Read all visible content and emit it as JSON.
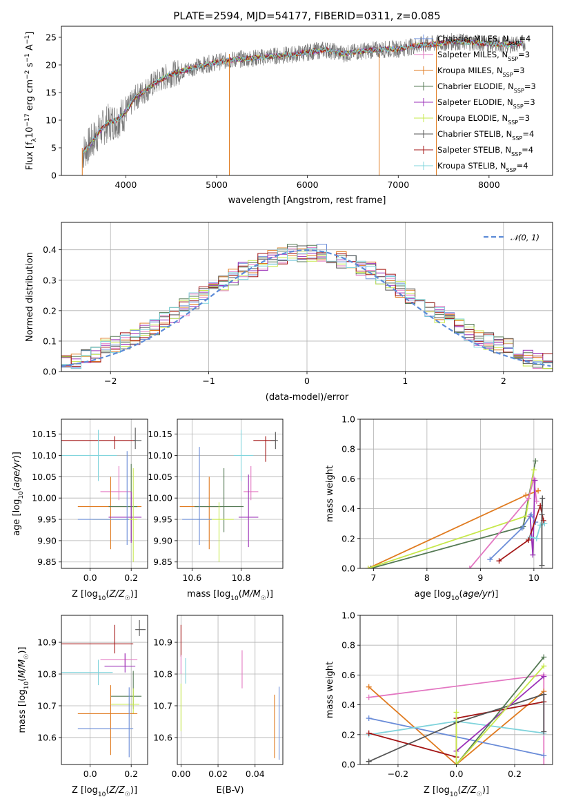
{
  "chart_data": [
    {
      "type": "line",
      "title": "PLATE=2594, MJD=54177, FIBERID=0311, z=0.085",
      "xlabel": "wavelength [Angstrom, rest frame]",
      "ylabel": "Flux [f_λ10^-17 erg cm^-2 s^-1 A^-1]",
      "xlim": [
        3290,
        8700
      ],
      "ylim": [
        0,
        27
      ],
      "xticks": [
        "4000",
        "5000",
        "6000",
        "7000",
        "8000"
      ],
      "yticks": [
        "0",
        "5",
        "10",
        "15",
        "20",
        "25"
      ],
      "legend_position": "top-right",
      "spectrum_envelope": {
        "x": [
          3520,
          3600,
          3700,
          3800,
          3900,
          4000,
          4100,
          4200,
          4300,
          4400,
          4500,
          4600,
          4800,
          5000,
          5200,
          5400,
          5600,
          5800,
          6000,
          6200,
          6400,
          6600,
          6800,
          7000,
          7200,
          7400,
          7600,
          7800,
          8000,
          8200,
          8400
        ],
        "y": [
          4.0,
          5.5,
          7.8,
          9.5,
          10.0,
          11.5,
          14.0,
          15.2,
          16.5,
          17.5,
          18.3,
          18.8,
          19.8,
          20.5,
          21.0,
          21.2,
          21.6,
          21.8,
          22.3,
          22.8,
          22.0,
          22.5,
          22.8,
          22.9,
          23.5,
          23.8,
          24.2,
          24.1,
          23.8,
          23.6,
          24.0
        ]
      },
      "series": [
        {
          "name": "Chabrier MILES, N_SSP=4",
          "color": "#6a8cd8"
        },
        {
          "name": "Salpeter MILES, N_SSP=3",
          "color": "#e377c2"
        },
        {
          "name": "Kroupa MILES, N_SSP=3",
          "color": "#e07b20"
        },
        {
          "name": "Chabrier ELODIE, N_SSP=3",
          "color": "#557a55"
        },
        {
          "name": "Salpeter ELODIE, N_SSP=3",
          "color": "#9b30b8"
        },
        {
          "name": "Kroupa ELODIE, N_SSP=3",
          "color": "#c6e84a"
        },
        {
          "name": "Chabrier STELIB, N_SSP=4",
          "color": "#555555"
        },
        {
          "name": "Salpeter STELIB, N_SSP=4",
          "color": "#a31515"
        },
        {
          "name": "Kroupa STELIB, N_SSP=4",
          "color": "#80d4dc"
        }
      ]
    },
    {
      "type": "line",
      "xlabel": "(data-model)/error",
      "ylabel": "Normed distribution",
      "xlim": [
        -2.5,
        2.5
      ],
      "ylim": [
        0,
        0.49
      ],
      "xticks": [
        "−2",
        "−1",
        "0",
        "1",
        "2"
      ],
      "yticks": [
        "0.0",
        "0.1",
        "0.2",
        "0.3",
        "0.4"
      ],
      "legend_position": "top-right",
      "reference_curve": {
        "name": "𝒩(0, 1)",
        "color": "#5b8ad6"
      },
      "bin_centers": [
        -2.45,
        -2.35,
        -2.25,
        -2.15,
        -2.05,
        -1.95,
        -1.85,
        -1.75,
        -1.65,
        -1.55,
        -1.45,
        -1.35,
        -1.25,
        -1.15,
        -1.05,
        -0.95,
        -0.85,
        -0.75,
        -0.65,
        -0.55,
        -0.45,
        -0.35,
        -0.25,
        -0.15,
        -0.05,
        0.05,
        0.15,
        0.25,
        0.35,
        0.45,
        0.55,
        0.65,
        0.75,
        0.85,
        0.95,
        1.05,
        1.15,
        1.25,
        1.35,
        1.45,
        1.55,
        1.65,
        1.75,
        1.85,
        1.95,
        2.05,
        2.15,
        2.25,
        2.35,
        2.45
      ],
      "histogram_base": [
        0.03,
        0.035,
        0.045,
        0.06,
        0.08,
        0.09,
        0.1,
        0.11,
        0.13,
        0.15,
        0.17,
        0.19,
        0.21,
        0.23,
        0.25,
        0.27,
        0.29,
        0.31,
        0.33,
        0.34,
        0.36,
        0.37,
        0.38,
        0.39,
        0.39,
        0.39,
        0.39,
        0.38,
        0.37,
        0.36,
        0.34,
        0.33,
        0.31,
        0.29,
        0.27,
        0.25,
        0.23,
        0.21,
        0.19,
        0.17,
        0.15,
        0.13,
        0.11,
        0.1,
        0.09,
        0.08,
        0.06,
        0.045,
        0.035,
        0.03
      ]
    },
    {
      "type": "scatter",
      "xlabel": "Z [log10(Z/Z☉)]",
      "ylabel": "age  [log10(age/yr)]",
      "xlim": [
        -0.14,
        0.28
      ],
      "ylim": [
        9.835,
        10.185
      ],
      "xticks": [
        "0.0",
        "0.2"
      ],
      "yticks": [
        "9.85",
        "9.90",
        "9.95",
        "10.00",
        "10.05",
        "10.10",
        "10.15"
      ],
      "points": [
        {
          "x": 0.12,
          "y": 10.135,
          "xerr": [
            0.26,
            0.1
          ],
          "yerr": [
            0.02,
            0.01
          ],
          "color": "#a31515"
        },
        {
          "x": 0.22,
          "y": 10.135,
          "xerr": [
            0.01,
            0.03
          ],
          "yerr": [
            0.02,
            0.03
          ],
          "color": "#555555"
        },
        {
          "x": 0.04,
          "y": 10.1,
          "xerr": [
            0.2,
            0.09
          ],
          "yerr": [
            0.06,
            0.06
          ],
          "color": "#80d4dc"
        },
        {
          "x": 0.14,
          "y": 10.015,
          "xerr": [
            0.09,
            0.06
          ],
          "yerr": [
            0.02,
            0.06
          ],
          "color": "#e377c2"
        },
        {
          "x": 0.1,
          "y": 9.98,
          "xerr": [
            0.16,
            0.15
          ],
          "yerr": [
            0.1,
            0.07
          ],
          "color": "#e07b20"
        },
        {
          "x": 0.2,
          "y": 9.98,
          "xerr": [
            0.11,
            0.03
          ],
          "yerr": [
            0.08,
            0.1
          ],
          "color": "#557a55"
        },
        {
          "x": 0.2,
          "y": 9.955,
          "xerr": [
            0.11,
            0.05
          ],
          "yerr": [
            0.06,
            0.06
          ],
          "color": "#9b30b8"
        },
        {
          "x": 0.21,
          "y": 9.95,
          "xerr": [
            0.2,
            0.02
          ],
          "yerr": [
            0.1,
            0.12
          ],
          "color": "#c6e84a"
        },
        {
          "x": 0.18,
          "y": 9.95,
          "xerr": [
            0.24,
            0.01
          ],
          "yerr": [
            0.06,
            0.16
          ],
          "color": "#6a8cd8"
        }
      ]
    },
    {
      "type": "scatter",
      "xlabel": "mass [log10(M/M☉)]",
      "xlim": [
        10.54,
        10.97
      ],
      "ylim": [
        9.835,
        10.185
      ],
      "xticks": [
        "10.6",
        "10.8"
      ],
      "yticks": [
        "9.85",
        "9.90",
        "9.95",
        "10.00",
        "10.05",
        "10.10",
        "10.15"
      ],
      "points": [
        {
          "x": 10.9,
          "y": 10.135,
          "xerr": [
            0.05,
            0.04
          ],
          "yerr": [
            0.05,
            0.01
          ],
          "color": "#a31515"
        },
        {
          "x": 10.94,
          "y": 10.135,
          "xerr": [
            0.02,
            0.01
          ],
          "yerr": [
            0.02,
            0.02
          ],
          "color": "#555555"
        },
        {
          "x": 10.8,
          "y": 10.1,
          "xerr": [
            0.03,
            0.05
          ],
          "yerr": [
            0.06,
            0.06
          ],
          "color": "#80d4dc"
        },
        {
          "x": 10.84,
          "y": 10.015,
          "xerr": [
            0.03,
            0.03
          ],
          "yerr": [
            0.02,
            0.06
          ],
          "color": "#e377c2"
        },
        {
          "x": 10.67,
          "y": 9.98,
          "xerr": [
            0.12,
            0.05
          ],
          "yerr": [
            0.1,
            0.07
          ],
          "color": "#e07b20"
        },
        {
          "x": 10.73,
          "y": 9.98,
          "xerr": [
            0.12,
            0.08
          ],
          "yerr": [
            0.06,
            0.09
          ],
          "color": "#557a55"
        },
        {
          "x": 10.83,
          "y": 9.955,
          "xerr": [
            0.04,
            0.04
          ],
          "yerr": [
            0.07,
            0.1
          ],
          "color": "#9b30b8"
        },
        {
          "x": 10.71,
          "y": 9.95,
          "xerr": [
            0.09,
            0.06
          ],
          "yerr": [
            0.1,
            0.04
          ],
          "color": "#c6e84a"
        },
        {
          "x": 10.63,
          "y": 9.95,
          "xerr": [
            0.07,
            0.05
          ],
          "yerr": [
            0.06,
            0.17
          ],
          "color": "#6a8cd8"
        }
      ]
    },
    {
      "type": "line",
      "xlabel": "age  [log10(age/yr)]",
      "ylabel": "mass weight",
      "xlim": [
        6.75,
        10.35
      ],
      "ylim": [
        0,
        1
      ],
      "xticks": [
        "7",
        "8",
        "9",
        "10"
      ],
      "yticks": [
        "0.0",
        "0.2",
        "0.4",
        "0.6",
        "0.8",
        "1.0"
      ],
      "series": [
        {
          "color": "#e07b20",
          "x": [
            6.9,
            9.85,
            10.08
          ],
          "y": [
            0.0,
            0.49,
            0.52
          ]
        },
        {
          "color": "#557a55",
          "x": [
            6.95,
            9.8,
            10.03
          ],
          "y": [
            0.0,
            0.28,
            0.72
          ]
        },
        {
          "color": "#c6e84a",
          "x": [
            6.9,
            9.85,
            10.0
          ],
          "y": [
            0.0,
            0.35,
            0.66
          ]
        },
        {
          "color": "#e377c2",
          "x": [
            8.8,
            9.9,
            10.0,
            10.05
          ],
          "y": [
            0.0,
            0.47,
            0.6,
            0.45
          ]
        },
        {
          "color": "#9b30b8",
          "x": [
            9.93,
            9.98,
            10.02
          ],
          "y": [
            0.35,
            0.09,
            0.59
          ]
        },
        {
          "color": "#6a8cd8",
          "x": [
            9.18,
            9.78,
            9.95,
            10.03
          ],
          "y": [
            0.06,
            0.27,
            0.36,
            0.31
          ]
        },
        {
          "color": "#a31515",
          "x": [
            9.35,
            9.9,
            10.12,
            10.18
          ],
          "y": [
            0.05,
            0.19,
            0.42,
            0.32
          ]
        },
        {
          "color": "#80d4dc",
          "x": [
            9.93,
            10.05,
            10.12,
            10.2
          ],
          "y": [
            0.21,
            0.2,
            0.29,
            0.3
          ]
        },
        {
          "color": "#555555",
          "x": [
            10.15,
            10.15,
            10.16
          ],
          "y": [
            0.02,
            0.36,
            0.47
          ]
        }
      ]
    },
    {
      "type": "scatter",
      "xlabel": "Z [log10(Z/Z☉)]",
      "ylabel": "mass [log10(M/M☉)]",
      "xlim": [
        -0.14,
        0.28
      ],
      "ylim": [
        10.515,
        10.985
      ],
      "xticks": [
        "0.0",
        "0.2"
      ],
      "yticks": [
        "10.6",
        "10.7",
        "10.8",
        "10.9"
      ],
      "points": [
        {
          "x": 0.24,
          "y": 10.94,
          "xerr": [
            0.02,
            0.03
          ],
          "yerr": [
            0.02,
            0.03
          ],
          "color": "#555555"
        },
        {
          "x": 0.12,
          "y": 10.895,
          "xerr": [
            0.26,
            0.09
          ],
          "yerr": [
            0.03,
            0.06
          ],
          "color": "#a31515"
        },
        {
          "x": 0.17,
          "y": 10.845,
          "xerr": [
            0.12,
            0.06
          ],
          "yerr": [
            0.02,
            0.02
          ],
          "color": "#e377c2"
        },
        {
          "x": 0.17,
          "y": 10.825,
          "xerr": [
            0.1,
            0.05
          ],
          "yerr": [
            0.02,
            0.04
          ],
          "color": "#9b30b8"
        },
        {
          "x": 0.04,
          "y": 10.805,
          "xerr": [
            0.2,
            0.07
          ],
          "yerr": [
            0.04,
            0.04
          ],
          "color": "#80d4dc"
        },
        {
          "x": 0.21,
          "y": 10.73,
          "xerr": [
            0.11,
            0.04
          ],
          "yerr": [
            0.04,
            0.08
          ],
          "color": "#557a55"
        },
        {
          "x": 0.21,
          "y": 10.705,
          "xerr": [
            0.11,
            0.03
          ],
          "yerr": [
            0.03,
            0.05
          ],
          "color": "#c6e84a"
        },
        {
          "x": 0.1,
          "y": 10.675,
          "xerr": [
            0.16,
            0.13
          ],
          "yerr": [
            0.13,
            0.09
          ],
          "color": "#e07b20"
        },
        {
          "x": 0.19,
          "y": 10.628,
          "xerr": [
            0.25,
            0.02
          ],
          "yerr": [
            0.09,
            0.13
          ],
          "color": "#6a8cd8"
        }
      ]
    },
    {
      "type": "scatter",
      "xlabel": "E(B-V)",
      "xlim": [
        -0.002,
        0.055
      ],
      "ylim": [
        10.515,
        10.985
      ],
      "xticks": [
        "0.00",
        "0.02",
        "0.04"
      ],
      "yticks": [
        "10.6",
        "10.7",
        "10.8",
        "10.9"
      ],
      "points": [
        {
          "x": 0.0,
          "y": 10.905,
          "yerr": [
            0.05,
            0.05
          ],
          "color": "#a31515"
        },
        {
          "x": 0.0,
          "y": 10.7,
          "yerr": [
            0.08,
            0.07
          ],
          "color": "#c6e84a"
        },
        {
          "x": 0.0,
          "y": 10.83,
          "yerr": [
            0.03,
            0.03
          ],
          "color": "#e377c2"
        },
        {
          "x": 0.0025,
          "y": 10.81,
          "yerr": [
            0.04,
            0.04
          ],
          "color": "#80d4dc"
        },
        {
          "x": 0.033,
          "y": 10.815,
          "yerr": [
            0.06,
            0.06
          ],
          "color": "#e377c2"
        },
        {
          "x": 0.0505,
          "y": 10.635,
          "yerr": [
            0.1,
            0.1
          ],
          "color": "#e07b20"
        },
        {
          "x": 0.053,
          "y": 10.65,
          "yerr": [
            0.12,
            0.11
          ],
          "color": "#6a8cd8"
        }
      ]
    },
    {
      "type": "line",
      "xlabel": "Z [log10(Z/Z☉)]",
      "ylabel": "mass weight",
      "xlim": [
        -0.33,
        0.33
      ],
      "ylim": [
        0,
        1
      ],
      "xticks": [
        "−0.2",
        "0.0",
        "0.2"
      ],
      "yticks": [
        "0.0",
        "0.2",
        "0.4",
        "0.6",
        "0.8",
        "1.0"
      ],
      "series": [
        {
          "color": "#e377c2",
          "x": [
            -0.3,
            0.3,
            0.3
          ],
          "y": [
            0.45,
            0.6,
            0.0
          ]
        },
        {
          "color": "#e07b20",
          "x": [
            -0.3,
            0.0,
            0.3
          ],
          "y": [
            0.52,
            0.0,
            0.49
          ]
        },
        {
          "color": "#6a8cd8",
          "x": [
            -0.3,
            0.3
          ],
          "y": [
            0.31,
            0.06
          ]
        },
        {
          "color": "#80d4dc",
          "x": [
            -0.3,
            0.0,
            0.3
          ],
          "y": [
            0.2,
            0.29,
            0.21
          ]
        },
        {
          "color": "#a31515",
          "x": [
            -0.3,
            0.0,
            0.0,
            0.3
          ],
          "y": [
            0.21,
            0.05,
            0.31,
            0.42
          ]
        },
        {
          "color": "#555555",
          "x": [
            -0.3,
            0.0,
            0.3,
            0.3
          ],
          "y": [
            0.02,
            0.28,
            0.47,
            0.22
          ]
        },
        {
          "color": "#9b30b8",
          "x": [
            0.0,
            0.3
          ],
          "y": [
            0.09,
            0.59
          ]
        },
        {
          "color": "#557a55",
          "x": [
            0.0,
            0.3
          ],
          "y": [
            0.0,
            0.72
          ]
        },
        {
          "color": "#c6e84a",
          "x": [
            0.0,
            0.0,
            0.3
          ],
          "y": [
            0.35,
            0.0,
            0.66
          ]
        }
      ]
    }
  ]
}
